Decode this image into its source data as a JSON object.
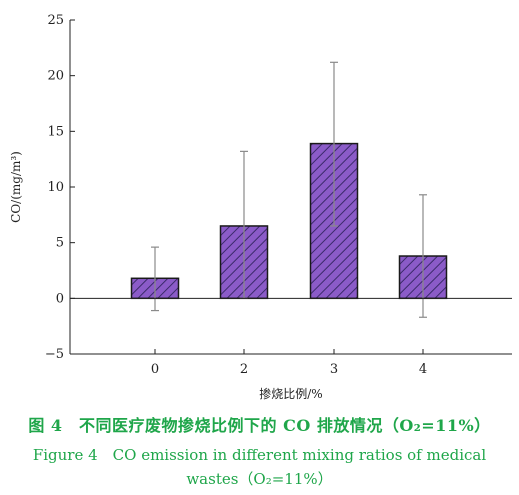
{
  "chart_data": {
    "type": "bar",
    "categories": [
      "0",
      "2",
      "3",
      "4"
    ],
    "values": [
      1.8,
      6.5,
      13.9,
      3.8
    ],
    "error_low": [
      -1.1,
      0.0,
      6.5,
      -1.7
    ],
    "error_high": [
      4.6,
      13.2,
      21.2,
      9.3
    ],
    "ylim": [
      -5,
      25
    ],
    "yticks": [
      -5,
      0,
      5,
      10,
      15,
      20,
      25
    ],
    "ylabel": "CO/(mg/m³)",
    "xlabel": "掺烧比例/%",
    "bar_color": "#8b5bc8",
    "hatch_color": "#3b2a6b",
    "caption_color": "#1fa64a"
  },
  "caption": {
    "cn": "图 4　不同医疗废物掺烧比例下的 CO 排放情况（O₂=11%）",
    "en_line1": "Figure 4　CO emission in different mixing ratios of medical",
    "en_line2": "wastes（O₂=11%）"
  }
}
